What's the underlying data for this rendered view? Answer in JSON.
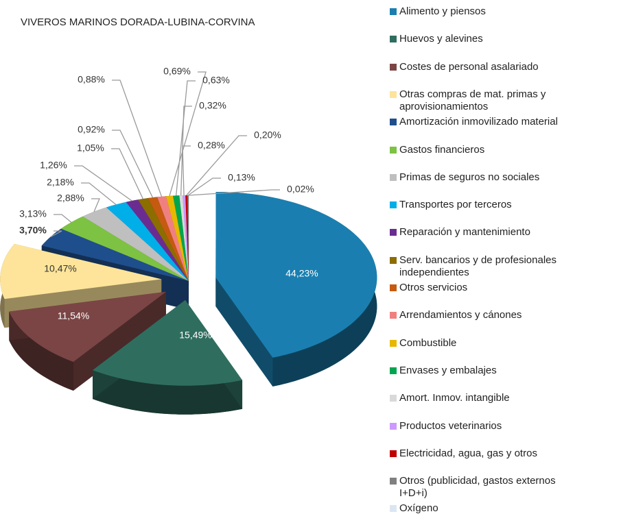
{
  "chart_data": {
    "type": "pie",
    "title": "VIVEROS MARINOS DORADA-LUBINA-CORVINA",
    "categories": [
      "Alimento y piensos",
      "Huevos y alevines",
      "Costes de personal asalariado",
      "Otras compras de mat. primas y aprovisionamientos",
      "Amortización inmovilizado material",
      "Gastos financieros",
      "Primas de seguros no sociales",
      "Transportes por terceros",
      "Reparación y mantenimiento",
      "Serv. bancarios y de profesionales independientes",
      "Otros servicios",
      "Arrendamientos y cánones",
      "Combustible",
      "Envases y embalajes",
      "Amort. Inmov. intangible",
      "Productos veterinarios",
      "Electricidad, agua, gas y otros",
      "Otros (publicidad, gastos externos I+D+i)",
      "Oxígeno"
    ],
    "values": [
      44.23,
      15.49,
      11.54,
      10.47,
      3.7,
      3.13,
      2.88,
      2.18,
      1.26,
      1.05,
      0.92,
      0.88,
      0.69,
      0.63,
      0.32,
      0.28,
      0.2,
      0.13,
      0.02
    ],
    "value_labels": [
      "44,23%",
      "15,49%",
      "11,54%",
      "10,47%",
      "3,70%",
      "3,13%",
      "2,88%",
      "2,18%",
      "1,26%",
      "1,05%",
      "0,92%",
      "0,88%",
      "0,69%",
      "0,63%",
      "0,32%",
      "0,28%",
      "0,20%",
      "0,13%",
      "0,02%"
    ],
    "colors": [
      "#1a7fb0",
      "#2f6e5f",
      "#7b4545",
      "#fde49a",
      "#1f4e8c",
      "#7dc242",
      "#bfbfbf",
      "#00aee8",
      "#6b2c91",
      "#8c6d00",
      "#c55a11",
      "#f08080",
      "#e6b800",
      "#00a550",
      "#d9d9d9",
      "#cc99ff",
      "#c00000",
      "#808080",
      "#dce6f2"
    ],
    "legend": "right"
  }
}
